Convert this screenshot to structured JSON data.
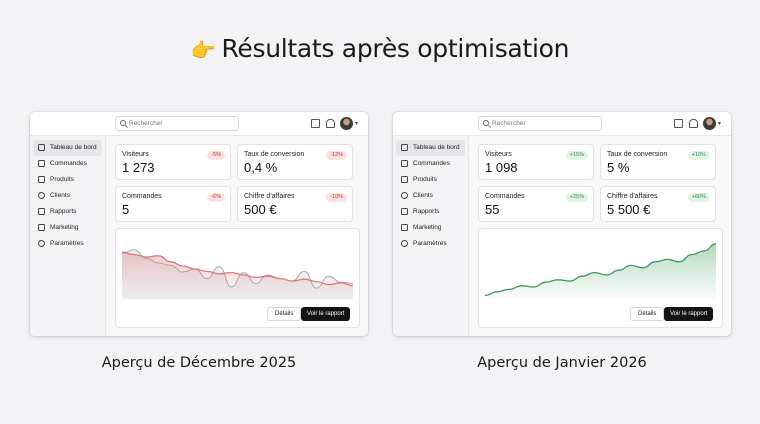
{
  "headline": {
    "emoji": "👉",
    "text": "Résultats après optimisation"
  },
  "panels": [
    {
      "caption": "Aperçu de Décembre 2025",
      "search_placeholder": "Rechercher",
      "nav": [
        "Tableau de bord",
        "Commandes",
        "Produits",
        "Clients",
        "Rapports",
        "Marketing",
        "Paramètres"
      ],
      "active_nav": 0,
      "stats": [
        {
          "label": "Visiteurs",
          "value": "1 273",
          "badge": "-5%",
          "trend": "neg"
        },
        {
          "label": "Taux de conversion",
          "value": "0,4 %",
          "badge": "-12%",
          "trend": "neg"
        },
        {
          "label": "Commandes",
          "value": "5",
          "badge": "-6%",
          "trend": "neg"
        },
        {
          "label": "Chiffre d'affaires",
          "value": "500 €",
          "badge": "-10%",
          "trend": "neg"
        }
      ],
      "details_label": "Détails",
      "report_label": "Voir le rapport",
      "chart": {
        "color": "#d97a7a",
        "secondary_color": "#a9a9b0",
        "series_main": [
          0.78,
          0.74,
          0.7,
          0.72,
          0.62,
          0.55,
          0.5,
          0.46,
          0.42,
          0.44,
          0.4,
          0.36,
          0.38,
          0.34,
          0.3,
          0.33,
          0.29,
          0.24,
          0.27,
          0.22
        ],
        "series_secondary": [
          0.76,
          0.82,
          0.68,
          0.6,
          0.56,
          0.45,
          0.5,
          0.34,
          0.54,
          0.2,
          0.44,
          0.26,
          0.4,
          0.34,
          0.3,
          0.46,
          0.18,
          0.38,
          0.28,
          0.26
        ]
      }
    },
    {
      "caption": "Aperçu de Janvier 2026",
      "search_placeholder": "Rechercher",
      "nav": [
        "Tableau de bord",
        "Commandes",
        "Produits",
        "Clients",
        "Rapports",
        "Marketing",
        "Paramètres"
      ],
      "active_nav": 0,
      "stats": [
        {
          "label": "Visiteurs",
          "value": "1 098",
          "badge": "+15%",
          "trend": "pos"
        },
        {
          "label": "Taux de conversion",
          "value": "5 %",
          "badge": "+10%",
          "trend": "pos"
        },
        {
          "label": "Commandes",
          "value": "55",
          "badge": "+25%",
          "trend": "pos"
        },
        {
          "label": "Chiffre d'affaires",
          "value": "5 500 €",
          "badge": "+60%",
          "trend": "pos"
        }
      ],
      "details_label": "Détails",
      "report_label": "Voir le rapport",
      "chart": {
        "color": "#3c9a5a",
        "series_main": [
          0.06,
          0.12,
          0.16,
          0.22,
          0.2,
          0.28,
          0.32,
          0.3,
          0.38,
          0.44,
          0.4,
          0.48,
          0.56,
          0.52,
          0.62,
          0.66,
          0.62,
          0.74,
          0.8,
          0.92
        ]
      }
    }
  ]
}
